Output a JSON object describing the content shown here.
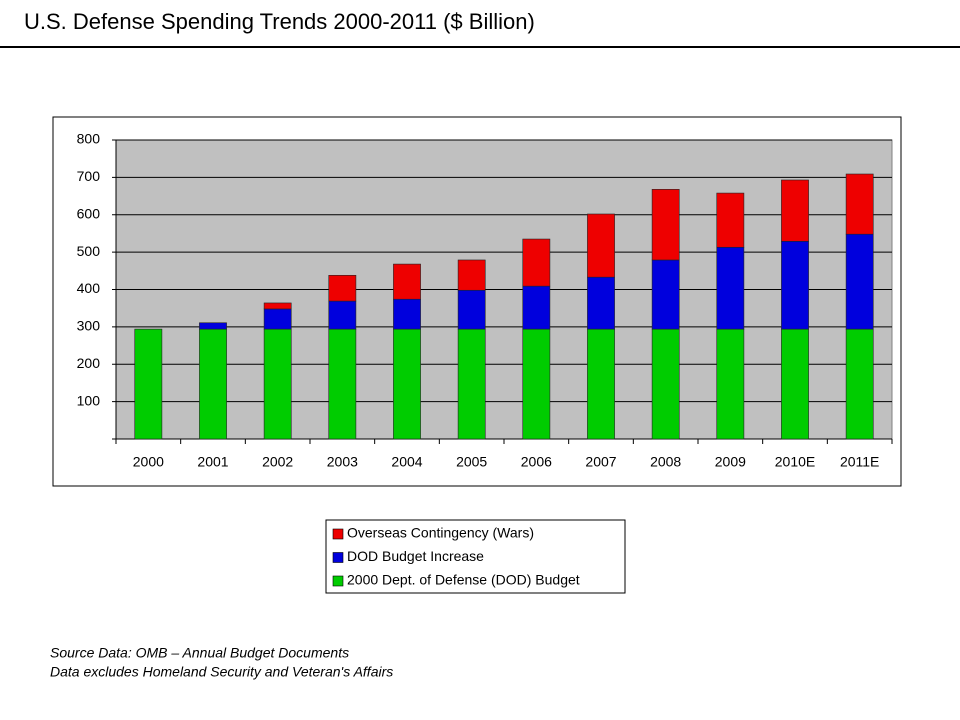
{
  "chart_data": {
    "type": "stacked-bar",
    "title": "U.S. Defense Spending Trends 2000-2011 ($ Billion)",
    "categories": [
      "2000",
      "2001",
      "2002",
      "2003",
      "2004",
      "2005",
      "2006",
      "2007",
      "2008",
      "2009",
      "2010E",
      "2011E"
    ],
    "series": [
      {
        "name": "2000 Dept. of Defense (DOD) Budget",
        "color": "#00cc00",
        "values": [
          294,
          294,
          294,
          294,
          294,
          294,
          294,
          294,
          294,
          294,
          294,
          294
        ]
      },
      {
        "name": "DOD Budget Increase",
        "color": "#0000dd",
        "values": [
          0,
          17,
          54,
          75,
          80,
          104,
          115,
          139,
          185,
          219,
          235,
          254
        ]
      },
      {
        "name": "Overseas Contingency (Wars)",
        "color": "#ee0000",
        "values": [
          0,
          0,
          16,
          69,
          94,
          81,
          126,
          169,
          189,
          145,
          164,
          161
        ]
      }
    ],
    "ylim": [
      0,
      800
    ],
    "yticks": [
      100,
      200,
      300,
      400,
      500,
      600,
      700,
      800
    ],
    "grid": true,
    "notes": [
      "Source Data: OMB – Annual Budget Documents",
      "Data excludes Homeland Security and Veteran's Affairs"
    ]
  }
}
